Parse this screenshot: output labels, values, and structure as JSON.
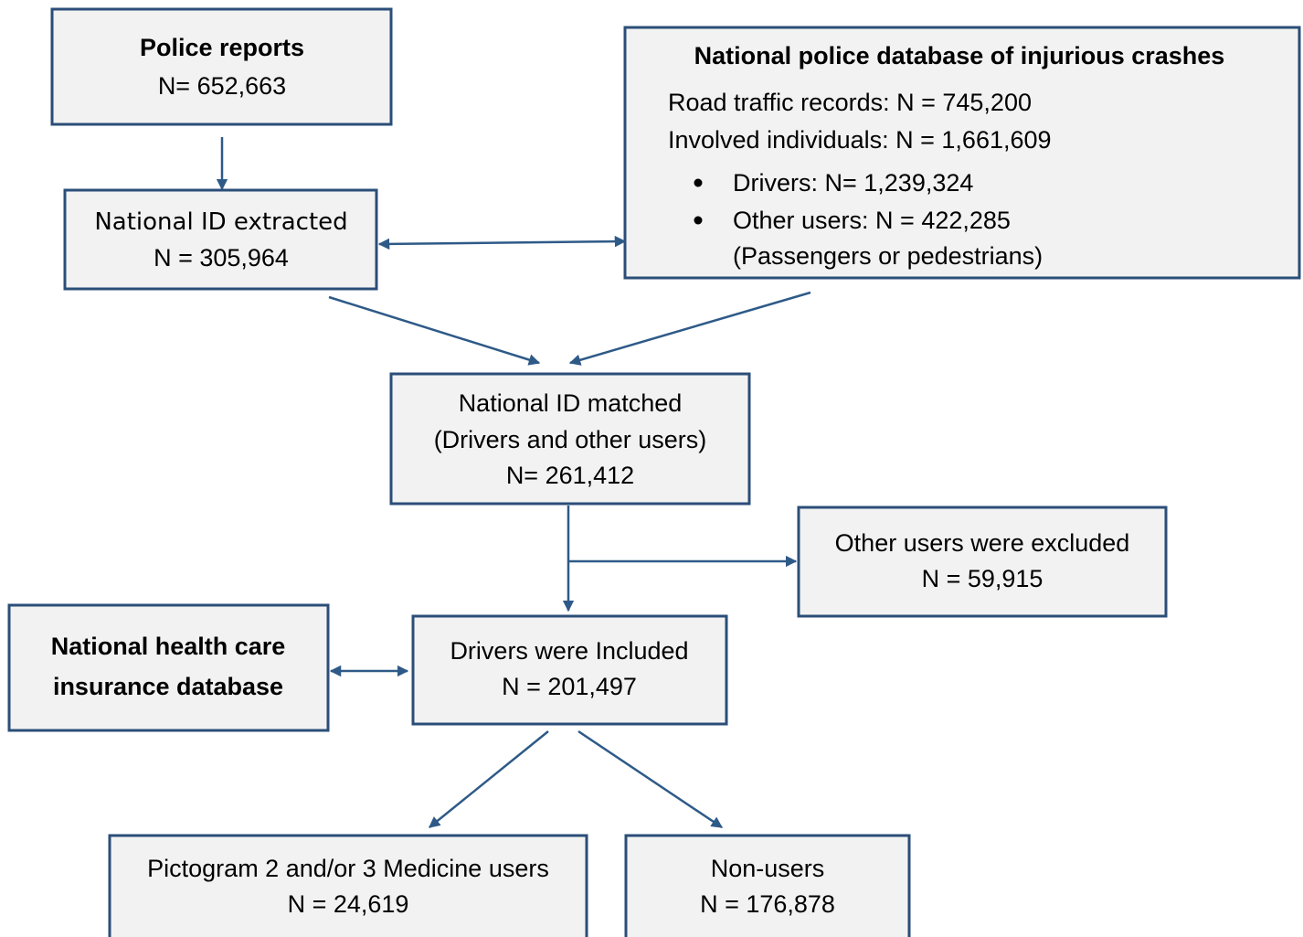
{
  "nodes": [
    {
      "title": "Police reports",
      "lines": [
        "N= 652,663"
      ]
    },
    {
      "title": "National police database of injurious crashes",
      "lines": [
        "Road traffic records: N = 745,200",
        "Involved individuals: N = 1,661,609"
      ],
      "bullets": [
        "Drivers: N= 1,239,324",
        "Other users: N = 422,285"
      ],
      "note": "(Passengers or pedestrians)"
    },
    {
      "lines": [
        "National ID extracted",
        "N = 305,964"
      ]
    },
    {
      "lines": [
        "National ID matched",
        "(Drivers and other users)",
        "N= 261,412"
      ]
    },
    {
      "lines": [
        "Other users were excluded",
        "N = 59,915"
      ]
    },
    {
      "title": "National health care",
      "lines": [
        "insurance database"
      ]
    },
    {
      "lines": [
        "Drivers were Included",
        "N = 201,497"
      ]
    },
    {
      "lines": [
        "Pictogram 2 and/or 3 Medicine users",
        "N = 24,619"
      ]
    },
    {
      "lines": [
        "Non-users",
        "N = 176,878"
      ]
    }
  ]
}
